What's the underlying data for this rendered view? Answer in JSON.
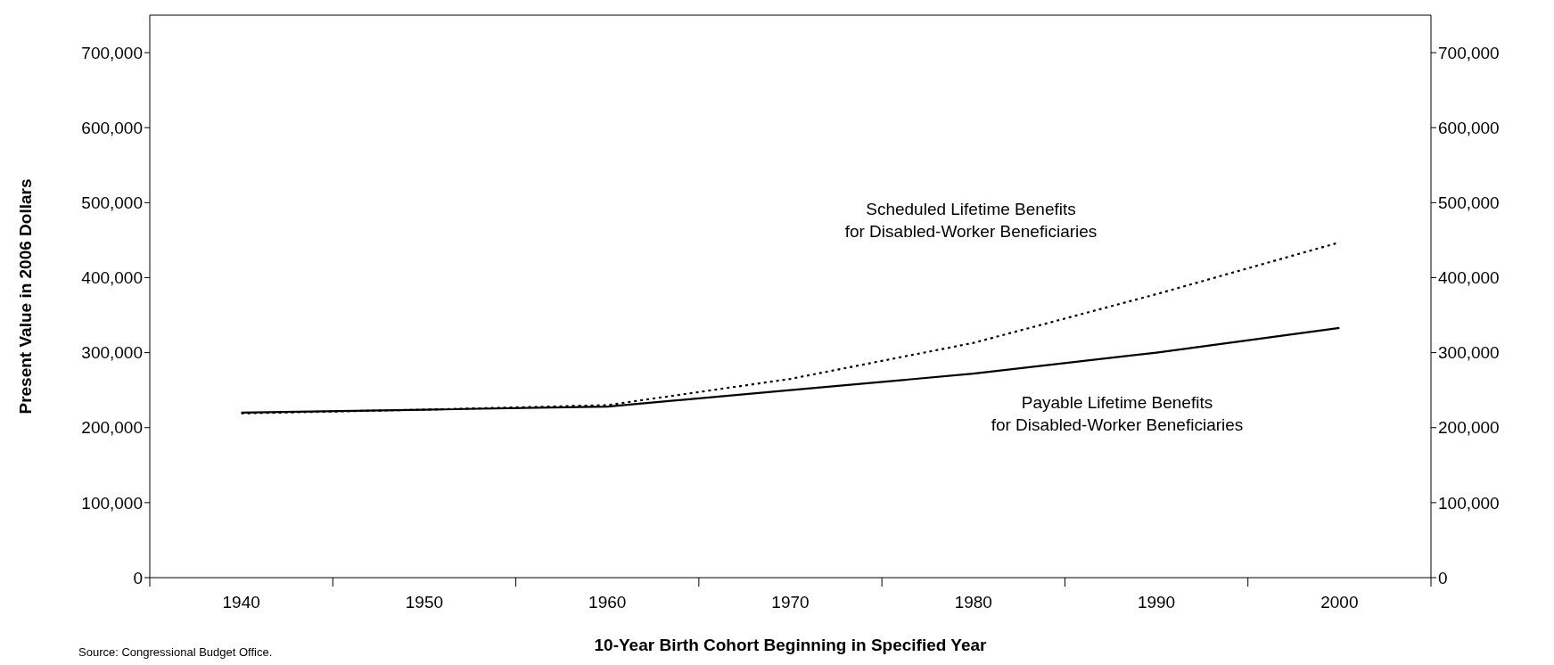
{
  "chart_data": {
    "type": "line",
    "xlabel": "10-Year Birth Cohort Beginning in Specified Year",
    "ylabel": "Present Value in 2006 Dollars",
    "categories": [
      "1940",
      "1950",
      "1960",
      "1970",
      "1980",
      "1990",
      "2000"
    ],
    "series": [
      {
        "color": "#000000",
        "line_style": "dotted",
        "values": [
          219000,
          224000,
          230000,
          265000,
          313000,
          378000,
          447000
        ]
      },
      {
        "color": "#000000",
        "line_style": "solid",
        "values": [
          220000,
          224000,
          228000,
          250000,
          272000,
          300000,
          333000
        ]
      }
    ],
    "ylim": [
      0,
      750000
    ],
    "yticks": [
      0,
      {
        "value": 100000,
        "label": "100,000"
      },
      {
        "value": 200000,
        "label": "200,000"
      },
      {
        "value": 300000,
        "label": "300,000"
      },
      {
        "value": 400000,
        "label": "400,000"
      },
      {
        "value": 500000,
        "label": "500,000"
      },
      {
        "value": 600000,
        "label": "600,000"
      },
      {
        "value": 700000,
        "label": "700,000"
      }
    ],
    "y2lim": [
      0,
      750000
    ],
    "y2ticks": [
      0,
      {
        "value": 100000,
        "label": "100,000"
      },
      {
        "value": 200000,
        "label": "200,000"
      },
      {
        "value": 300000,
        "label": "300,000"
      },
      {
        "value": 400000,
        "label": "400,000"
      },
      {
        "value": 500000,
        "label": "500,000"
      },
      {
        "value": 600000,
        "label": "600,000"
      },
      {
        "value": 700000,
        "label": "700,000"
      }
    ],
    "marker": "none",
    "annotations": [
      "Scheduled Lifetime Benefits\nfor Disabled-Worker Beneficiaries",
      "Payable Lifetime Benefits\nfor Disabled-Worker Beneficiaries",
      "Source: Congressional Budget Office."
    ]
  }
}
